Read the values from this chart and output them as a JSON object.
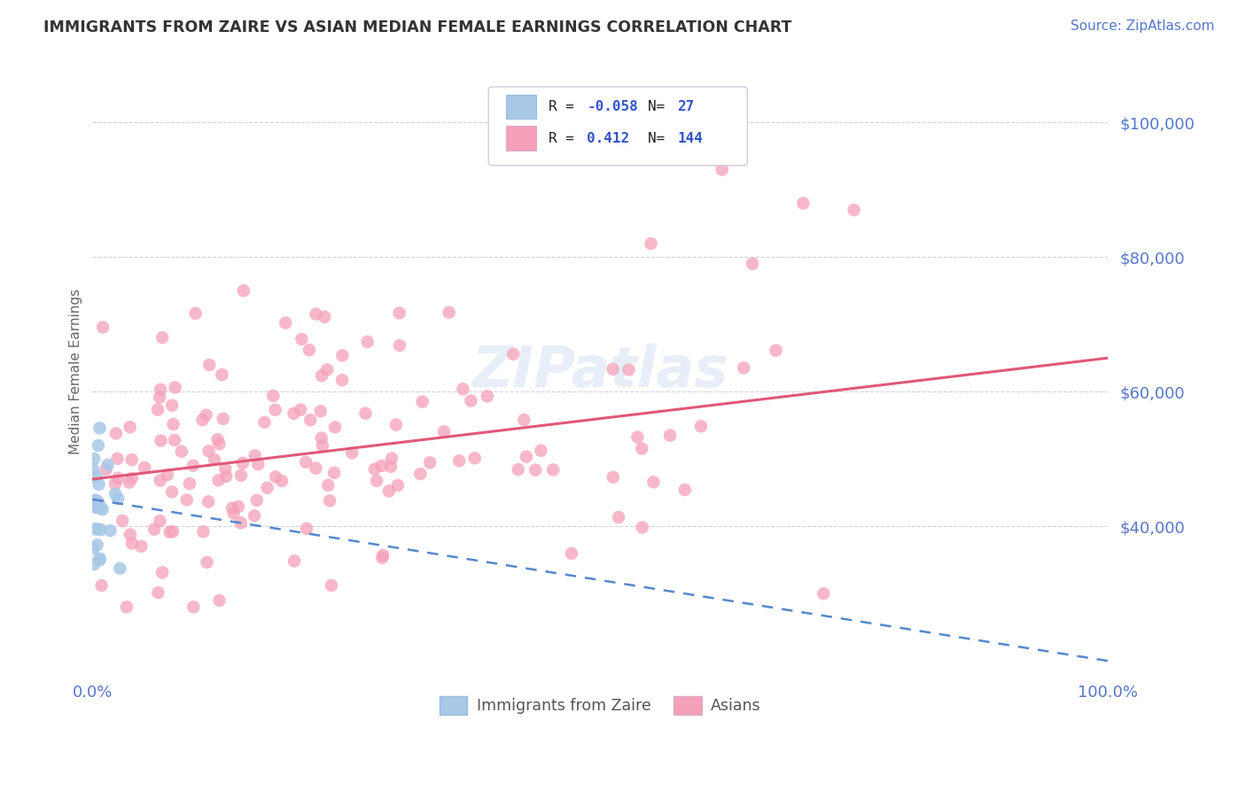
{
  "title": "IMMIGRANTS FROM ZAIRE VS ASIAN MEDIAN FEMALE EARNINGS CORRELATION CHART",
  "source": "Source: ZipAtlas.com",
  "ylabel": "Median Female Earnings",
  "xlim": [
    0.0,
    1.0
  ],
  "ylim": [
    18000,
    108000
  ],
  "yticks": [
    40000,
    60000,
    80000,
    100000
  ],
  "ytick_labels": [
    "$40,000",
    "$60,000",
    "$80,000",
    "$100,000"
  ],
  "xtick_labels": [
    "0.0%",
    "100.0%"
  ],
  "color_zaire": "#a8c8e8",
  "color_asian": "#f4a0b8",
  "color_zaire_line": "#5588cc",
  "color_asian_line": "#e05878",
  "color_title": "#333333",
  "color_axis_ticks": "#5577cc",
  "color_source": "#5577cc",
  "background_color": "#ffffff",
  "grid_color": "#bbbbdd",
  "watermark_color": "#d0dff0",
  "watermark_alpha": 0.5,
  "legend_r1_val": "-0.058",
  "legend_n1": "27",
  "legend_r2_val": "0.412",
  "legend_n2": "144",
  "asian_line_x0": 0.0,
  "asian_line_y0": 47000,
  "asian_line_x1": 1.0,
  "asian_line_y1": 65000,
  "zaire_line_x0": 0.0,
  "zaire_line_y0": 44000,
  "zaire_line_x1": 1.0,
  "zaire_line_y1": 20000
}
